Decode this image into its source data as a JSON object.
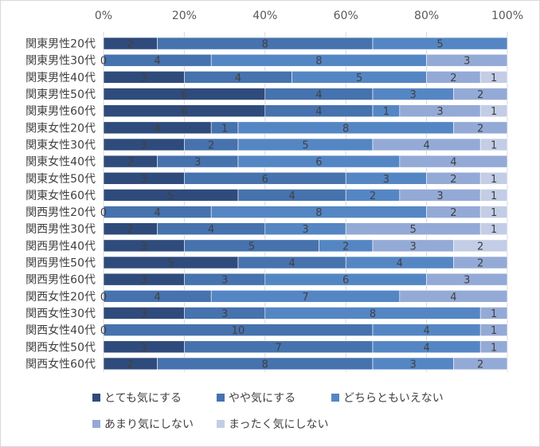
{
  "chart_data": {
    "type": "bar",
    "orientation": "horizontal",
    "stacked": "percent",
    "title": "",
    "xlabel": "",
    "ylabel": "",
    "xlim": [
      0,
      100
    ],
    "x_ticks": [
      "0%",
      "20%",
      "40%",
      "60%",
      "80%",
      "100%"
    ],
    "x_axis_position": "top",
    "grid": true,
    "legend_position": "bottom",
    "categories": [
      "関東男性20代",
      "関東男性30代",
      "関東男性40代",
      "関東男性50代",
      "関東男性60代",
      "関東女性20代",
      "関東女性30代",
      "関東女性40代",
      "関東女性50代",
      "関東女性60代",
      "関西男性20代",
      "関西男性30代",
      "関西男性40代",
      "関西男性50代",
      "関西男性60代",
      "関西女性20代",
      "関西女性30代",
      "関西女性40代",
      "関西女性50代",
      "関西女性60代"
    ],
    "series": [
      {
        "name": "とても気にする",
        "color": "#2f4b7c",
        "values": [
          2,
          0,
          3,
          6,
          6,
          4,
          3,
          2,
          3,
          5,
          0,
          2,
          3,
          5,
          3,
          0,
          3,
          0,
          3,
          2
        ]
      },
      {
        "name": "やや気にする",
        "color": "#4672ae",
        "values": [
          8,
          4,
          4,
          4,
          4,
          1,
          2,
          3,
          6,
          4,
          4,
          4,
          5,
          4,
          3,
          4,
          3,
          10,
          7,
          8
        ]
      },
      {
        "name": "どちらともいえない",
        "color": "#5586c4",
        "values": [
          5,
          8,
          5,
          3,
          1,
          8,
          5,
          6,
          3,
          2,
          8,
          3,
          2,
          4,
          6,
          7,
          8,
          4,
          4,
          3
        ]
      },
      {
        "name": "あまり気にしない",
        "color": "#94aad6",
        "values": [
          0,
          3,
          2,
          2,
          3,
          2,
          4,
          4,
          2,
          3,
          2,
          5,
          3,
          2,
          3,
          4,
          1,
          1,
          1,
          2
        ]
      },
      {
        "name": "まったく気にしない",
        "color": "#c3cde6",
        "values": [
          0,
          0,
          1,
          0,
          1,
          0,
          1,
          0,
          1,
          1,
          1,
          1,
          2,
          0,
          0,
          0,
          0,
          0,
          0,
          0
        ]
      }
    ]
  }
}
